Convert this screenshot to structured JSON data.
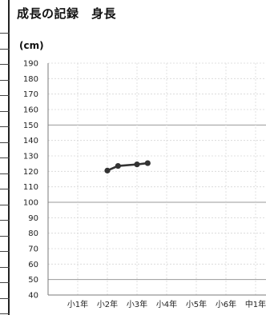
{
  "title": "成長の記録　身長",
  "chart_data": {
    "type": "line",
    "title": "成長の記録　身長",
    "ylabel": "(cm)",
    "xlabel": "",
    "categories": [
      "小1年",
      "小2年",
      "小3年",
      "小4年",
      "小5年",
      "小6年",
      "中1年"
    ],
    "ylim": [
      40,
      190
    ],
    "yticks": [
      190,
      180,
      170,
      160,
      150,
      140,
      130,
      120,
      110,
      100,
      90,
      80,
      70,
      60,
      50,
      40
    ],
    "grid": true,
    "series": [
      {
        "color": "#333333",
        "points": [
          {
            "x": "小2年",
            "y": 120.5
          },
          {
            "x": "小2年",
            "y": 123.5
          },
          {
            "x": "小3年",
            "y": 124.5
          },
          {
            "x": "小3年",
            "y": 125.3
          }
        ]
      }
    ]
  }
}
